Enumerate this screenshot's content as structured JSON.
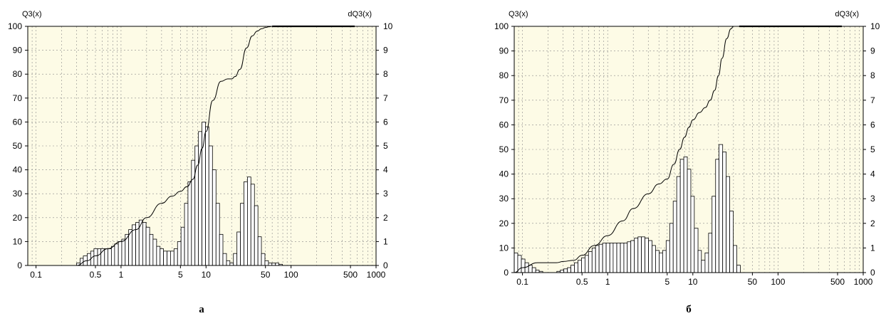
{
  "chart_data": [
    {
      "type": "bar",
      "caption": "а",
      "left_axis_label": "Q3(x)",
      "right_axis_label": "dQ3(x)",
      "x_scale": "log",
      "xlim": [
        0.08,
        1000
      ],
      "x_ticks": [
        0.1,
        0.5,
        1,
        5,
        10,
        50,
        100,
        500,
        1000
      ],
      "x_tick_labels": [
        "0.1",
        "0.5",
        "1",
        "5",
        "10",
        "50",
        "100",
        "500",
        "1000"
      ],
      "left_ylim": [
        0,
        100
      ],
      "left_ticks": [
        "0",
        "10",
        "20",
        "30",
        "40",
        "50",
        "60",
        "70",
        "80",
        "90",
        "100"
      ],
      "right_ylim": [
        0,
        10
      ],
      "right_ticks": [
        "0",
        "1",
        "2",
        "3",
        "4",
        "5",
        "6",
        "7",
        "8",
        "9",
        "10"
      ],
      "grid": true,
      "background": "#fdfbe6",
      "bar_color": "#ffffff",
      "line_color": "#000000",
      "histogram": {
        "name": "dQ3(x)",
        "x_start": [
          0.3,
          0.33,
          0.36,
          0.4,
          0.44,
          0.48,
          0.53,
          0.58,
          0.64,
          0.7,
          0.77,
          0.84,
          0.93,
          1.02,
          1.12,
          1.23,
          1.35,
          1.49,
          1.63,
          1.8,
          1.97,
          2.17,
          2.38,
          2.62,
          2.88,
          3.16,
          3.48,
          3.82,
          4.2,
          4.62,
          5.08,
          5.58,
          6.13,
          6.74,
          7.41,
          8.15,
          8.96,
          9.85,
          10.8,
          11.9,
          13.1,
          14.4,
          15.8,
          17.4,
          19.1,
          21.0,
          23.1,
          25.4,
          27.9,
          30.7,
          33.7,
          37.1,
          40.8,
          44.8,
          49.3,
          54.2,
          59.6,
          65.5,
          72.0
        ],
        "values": [
          0.1,
          0.3,
          0.4,
          0.5,
          0.6,
          0.7,
          0.7,
          0.7,
          0.7,
          0.7,
          0.8,
          0.9,
          1.0,
          1.1,
          1.3,
          1.5,
          1.7,
          1.8,
          1.9,
          1.8,
          1.6,
          1.3,
          1.1,
          0.8,
          0.7,
          0.6,
          0.6,
          0.6,
          0.7,
          1.0,
          1.6,
          2.6,
          3.5,
          4.4,
          5.0,
          5.6,
          6.0,
          5.8,
          5.0,
          4.0,
          2.6,
          1.3,
          0.5,
          0.2,
          0.1,
          0.5,
          1.4,
          2.6,
          3.5,
          3.7,
          3.4,
          2.5,
          1.2,
          0.5,
          0.2,
          0.1,
          0.1,
          0.1,
          0.05
        ]
      },
      "cumulative": {
        "name": "Q3(x)",
        "x": [
          0.3,
          0.4,
          0.5,
          0.7,
          1.0,
          1.5,
          2.0,
          3.0,
          4.0,
          5.0,
          6.0,
          7.0,
          8.0,
          9.0,
          10.0,
          12.0,
          15.0,
          18.0,
          20.0,
          22.0,
          25.0,
          30.0,
          35.0,
          40.0,
          45.0,
          50.0,
          55.0,
          60.0,
          1000.0
        ],
        "y": [
          0,
          2,
          4,
          7,
          10,
          15,
          20,
          26,
          29,
          31,
          33,
          36,
          42,
          49,
          56,
          69,
          77,
          78,
          78,
          79,
          82,
          91,
          96,
          98,
          99,
          99.5,
          99.8,
          100,
          100
        ]
      }
    },
    {
      "type": "bar",
      "caption": "б",
      "left_axis_label": "Q3(x)",
      "right_axis_label": "dQ3(x)",
      "x_scale": "log",
      "xlim": [
        0.08,
        1000
      ],
      "x_ticks": [
        0.1,
        0.5,
        1,
        5,
        10,
        50,
        100,
        500,
        1000
      ],
      "x_tick_labels": [
        "0.1",
        "0.5",
        "1",
        "5",
        "10",
        "50",
        "100",
        "500",
        "1000"
      ],
      "left_ylim": [
        0,
        100
      ],
      "left_ticks": [
        "0",
        "10",
        "20",
        "30",
        "40",
        "50",
        "60",
        "70",
        "80",
        "90",
        "100"
      ],
      "right_ylim": [
        0,
        10
      ],
      "right_ticks": [
        "0",
        "1",
        "2",
        "3",
        "4",
        "5",
        "6",
        "7",
        "8",
        "9",
        "10"
      ],
      "grid": true,
      "background": "#fdfbe6",
      "bar_color": "#ffffff",
      "line_color": "#000000",
      "histogram": {
        "name": "dQ3(x)",
        "x_start": [
          0.08,
          0.088,
          0.097,
          0.107,
          0.118,
          0.13,
          0.143,
          0.157,
          0.173,
          0.19,
          0.209,
          0.23,
          0.253,
          0.278,
          0.306,
          0.337,
          0.37,
          0.407,
          0.448,
          0.493,
          0.542,
          0.596,
          0.656,
          0.721,
          0.793,
          0.873,
          0.96,
          1.06,
          1.16,
          1.28,
          1.41,
          1.55,
          1.7,
          1.87,
          2.06,
          2.27,
          2.49,
          2.74,
          3.02,
          3.32,
          3.65,
          4.02,
          4.42,
          4.86,
          5.35,
          5.88,
          6.47,
          7.12,
          7.83,
          8.61,
          9.47,
          10.4,
          11.5,
          12.6,
          13.9,
          15.3,
          16.8,
          18.5,
          20.3,
          22.4,
          24.6,
          27.1,
          29.8,
          32.8
        ],
        "values": [
          0.8,
          0.7,
          0.55,
          0.4,
          0.3,
          0.2,
          0.1,
          0.05,
          0,
          0,
          0,
          0,
          0.05,
          0.1,
          0.15,
          0.2,
          0.3,
          0.4,
          0.5,
          0.6,
          0.7,
          0.85,
          1.0,
          1.1,
          1.15,
          1.2,
          1.2,
          1.2,
          1.2,
          1.2,
          1.2,
          1.2,
          1.25,
          1.3,
          1.4,
          1.45,
          1.45,
          1.4,
          1.3,
          1.1,
          0.9,
          0.8,
          0.9,
          1.3,
          2.0,
          2.9,
          3.9,
          4.6,
          4.7,
          4.2,
          3.1,
          1.8,
          0.9,
          0.5,
          0.8,
          1.6,
          3.1,
          4.6,
          5.2,
          4.9,
          3.9,
          2.5,
          1.1,
          0.3
        ]
      },
      "cumulative": {
        "name": "Q3(x)",
        "x": [
          0.08,
          0.1,
          0.15,
          0.2,
          0.25,
          0.3,
          0.4,
          0.5,
          0.7,
          1.0,
          1.5,
          2.0,
          3.0,
          4.0,
          5.0,
          6.0,
          7.0,
          8.0,
          9.0,
          10.0,
          12.0,
          14.0,
          16.0,
          18.0,
          20.0,
          22.0,
          25.0,
          28.0,
          30.0,
          35.0,
          1000.0
        ],
        "y": [
          0,
          2,
          4,
          4,
          4,
          4.5,
          5,
          7,
          11,
          15,
          21,
          26,
          32,
          36,
          38,
          44,
          50,
          55,
          59,
          62,
          65,
          67,
          70,
          74,
          80,
          87,
          95,
          99,
          100,
          100,
          100
        ]
      }
    }
  ]
}
